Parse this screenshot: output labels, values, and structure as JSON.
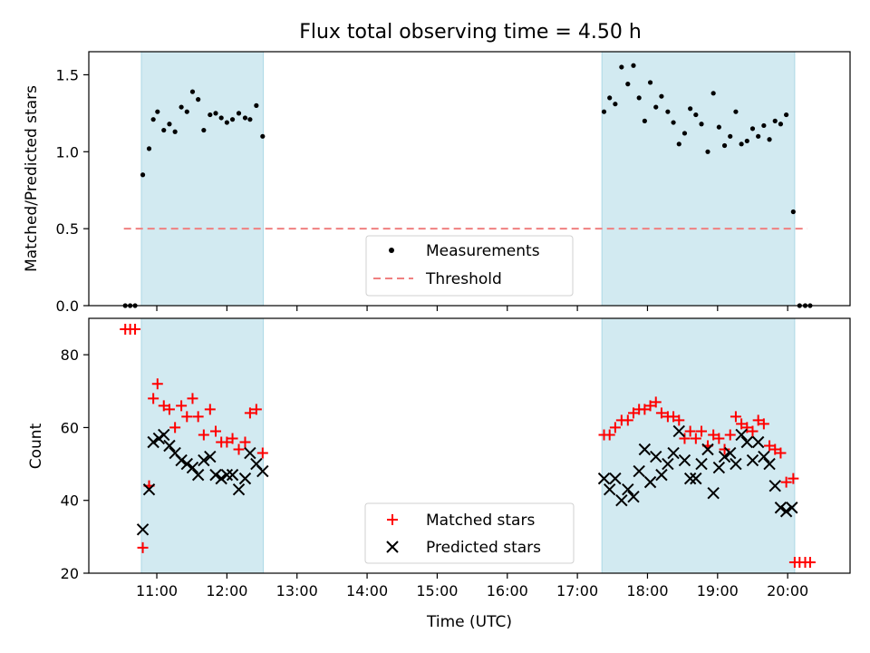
{
  "chart_data": {
    "title": "Flux total observing time = 4.50 h",
    "xlabel": "Time (UTC)",
    "x_range": [
      10.03,
      20.89
    ],
    "x_ticks": [
      11,
      12,
      13,
      14,
      15,
      16,
      17,
      18,
      19,
      20
    ],
    "x_tick_labels": [
      "11:00",
      "12:00",
      "13:00",
      "14:00",
      "15:00",
      "16:00",
      "17:00",
      "18:00",
      "19:00",
      "20:00"
    ],
    "shaded_intervals": [
      [
        10.78,
        12.52
      ],
      [
        17.35,
        20.1
      ]
    ],
    "shade_color": "#add8e6",
    "panels": [
      {
        "type": "scatter",
        "ylabel": "Matched/Predicted stars",
        "ylim": [
          0,
          1.65
        ],
        "y_ticks": [
          0.0,
          0.5,
          1.0,
          1.5
        ],
        "y_tick_labels": [
          "0.0",
          "0.5",
          "1.0",
          "1.5"
        ],
        "legend_position": "bottom-center",
        "threshold": {
          "name": "Threshold",
          "value": 0.5,
          "x_range": [
            10.53,
            20.28
          ],
          "color": "#f08080"
        },
        "series": [
          {
            "name": "Measurements",
            "marker": "dot",
            "color": "#000000",
            "points": [
              [
                10.55,
                0
              ],
              [
                10.62,
                0
              ],
              [
                10.69,
                0
              ],
              [
                10.8,
                0.85
              ],
              [
                10.89,
                1.02
              ],
              [
                10.95,
                1.21
              ],
              [
                11.01,
                1.26
              ],
              [
                11.1,
                1.14
              ],
              [
                11.18,
                1.18
              ],
              [
                11.26,
                1.13
              ],
              [
                11.35,
                1.29
              ],
              [
                11.43,
                1.26
              ],
              [
                11.51,
                1.39
              ],
              [
                11.59,
                1.34
              ],
              [
                11.67,
                1.14
              ],
              [
                11.76,
                1.24
              ],
              [
                11.84,
                1.25
              ],
              [
                11.92,
                1.22
              ],
              [
                12.0,
                1.19
              ],
              [
                12.08,
                1.21
              ],
              [
                12.17,
                1.25
              ],
              [
                12.26,
                1.22
              ],
              [
                12.33,
                1.21
              ],
              [
                12.42,
                1.3
              ],
              [
                12.51,
                1.1
              ],
              [
                17.38,
                1.26
              ],
              [
                17.46,
                1.35
              ],
              [
                17.54,
                1.31
              ],
              [
                17.63,
                1.55
              ],
              [
                17.72,
                1.44
              ],
              [
                17.8,
                1.56
              ],
              [
                17.88,
                1.35
              ],
              [
                17.96,
                1.2
              ],
              [
                18.04,
                1.45
              ],
              [
                18.12,
                1.29
              ],
              [
                18.2,
                1.36
              ],
              [
                18.29,
                1.26
              ],
              [
                18.37,
                1.19
              ],
              [
                18.45,
                1.05
              ],
              [
                18.53,
                1.12
              ],
              [
                18.61,
                1.28
              ],
              [
                18.69,
                1.24
              ],
              [
                18.77,
                1.18
              ],
              [
                18.86,
                1.0
              ],
              [
                18.94,
                1.38
              ],
              [
                19.02,
                1.16
              ],
              [
                19.1,
                1.04
              ],
              [
                19.18,
                1.1
              ],
              [
                19.26,
                1.26
              ],
              [
                19.34,
                1.05
              ],
              [
                19.42,
                1.07
              ],
              [
                19.5,
                1.15
              ],
              [
                19.58,
                1.1
              ],
              [
                19.66,
                1.17
              ],
              [
                19.74,
                1.08
              ],
              [
                19.82,
                1.2
              ],
              [
                19.9,
                1.18
              ],
              [
                19.98,
                1.24
              ],
              [
                20.08,
                0.61
              ],
              [
                20.17,
                0
              ],
              [
                20.25,
                0
              ],
              [
                20.32,
                0
              ]
            ]
          }
        ]
      },
      {
        "type": "scatter",
        "ylabel": "Count",
        "ylim": [
          20,
          90
        ],
        "y_ticks": [
          20,
          40,
          60,
          80
        ],
        "y_tick_labels": [
          "20",
          "40",
          "60",
          "80"
        ],
        "legend_position": "bottom-center",
        "series": [
          {
            "name": "Matched stars",
            "marker": "plus",
            "color": "#ff0000",
            "points": [
              [
                10.55,
                87
              ],
              [
                10.62,
                87
              ],
              [
                10.69,
                87
              ],
              [
                10.8,
                27
              ],
              [
                10.89,
                44
              ],
              [
                10.95,
                68
              ],
              [
                11.01,
                72
              ],
              [
                11.1,
                66
              ],
              [
                11.18,
                65
              ],
              [
                11.26,
                60
              ],
              [
                11.35,
                66
              ],
              [
                11.43,
                63
              ],
              [
                11.51,
                68
              ],
              [
                11.59,
                63
              ],
              [
                11.67,
                58
              ],
              [
                11.76,
                65
              ],
              [
                11.84,
                59
              ],
              [
                11.92,
                56
              ],
              [
                12.0,
                56
              ],
              [
                12.08,
                57
              ],
              [
                12.17,
                54
              ],
              [
                12.26,
                56
              ],
              [
                12.33,
                64
              ],
              [
                12.42,
                65
              ],
              [
                12.51,
                53
              ],
              [
                17.38,
                58
              ],
              [
                17.46,
                58
              ],
              [
                17.54,
                60
              ],
              [
                17.63,
                62
              ],
              [
                17.72,
                62
              ],
              [
                17.8,
                64
              ],
              [
                17.88,
                65
              ],
              [
                17.96,
                65
              ],
              [
                18.04,
                66
              ],
              [
                18.12,
                67
              ],
              [
                18.2,
                64
              ],
              [
                18.29,
                63
              ],
              [
                18.37,
                63
              ],
              [
                18.45,
                62
              ],
              [
                18.53,
                57
              ],
              [
                18.61,
                59
              ],
              [
                18.69,
                57
              ],
              [
                18.77,
                59
              ],
              [
                18.86,
                55
              ],
              [
                18.94,
                58
              ],
              [
                19.02,
                57
              ],
              [
                19.1,
                54
              ],
              [
                19.18,
                58
              ],
              [
                19.26,
                63
              ],
              [
                19.34,
                61
              ],
              [
                19.42,
                60
              ],
              [
                19.5,
                59
              ],
              [
                19.58,
                62
              ],
              [
                19.66,
                61
              ],
              [
                19.74,
                55
              ],
              [
                19.82,
                54
              ],
              [
                19.9,
                53
              ],
              [
                19.98,
                45
              ],
              [
                20.08,
                46
              ],
              [
                20.1,
                23
              ],
              [
                20.17,
                23
              ],
              [
                20.25,
                23
              ],
              [
                20.32,
                23
              ]
            ]
          },
          {
            "name": "Predicted stars",
            "marker": "x",
            "color": "#000000",
            "points": [
              [
                10.8,
                32
              ],
              [
                10.89,
                43
              ],
              [
                10.95,
                56
              ],
              [
                11.03,
                57
              ],
              [
                11.1,
                58
              ],
              [
                11.18,
                55
              ],
              [
                11.26,
                53
              ],
              [
                11.35,
                51
              ],
              [
                11.43,
                50
              ],
              [
                11.51,
                49
              ],
              [
                11.59,
                47
              ],
              [
                11.67,
                51
              ],
              [
                11.76,
                52
              ],
              [
                11.84,
                47
              ],
              [
                11.92,
                46
              ],
              [
                12.0,
                47
              ],
              [
                12.08,
                47
              ],
              [
                12.17,
                43
              ],
              [
                12.26,
                46
              ],
              [
                12.33,
                53
              ],
              [
                12.42,
                50
              ],
              [
                12.51,
                48
              ],
              [
                17.38,
                46
              ],
              [
                17.46,
                43
              ],
              [
                17.54,
                46
              ],
              [
                17.63,
                40
              ],
              [
                17.72,
                43
              ],
              [
                17.8,
                41
              ],
              [
                17.88,
                48
              ],
              [
                17.96,
                54
              ],
              [
                18.04,
                45
              ],
              [
                18.12,
                52
              ],
              [
                18.2,
                47
              ],
              [
                18.29,
                50
              ],
              [
                18.37,
                53
              ],
              [
                18.45,
                59
              ],
              [
                18.53,
                51
              ],
              [
                18.61,
                46
              ],
              [
                18.69,
                46
              ],
              [
                18.77,
                50
              ],
              [
                18.86,
                54
              ],
              [
                18.94,
                42
              ],
              [
                19.02,
                49
              ],
              [
                19.1,
                52
              ],
              [
                19.18,
                53
              ],
              [
                19.26,
                50
              ],
              [
                19.34,
                58
              ],
              [
                19.42,
                56
              ],
              [
                19.5,
                51
              ],
              [
                19.58,
                56
              ],
              [
                19.66,
                52
              ],
              [
                19.74,
                50
              ],
              [
                19.82,
                44
              ],
              [
                19.9,
                38
              ],
              [
                19.98,
                37
              ],
              [
                20.06,
                38
              ]
            ]
          }
        ]
      }
    ]
  }
}
